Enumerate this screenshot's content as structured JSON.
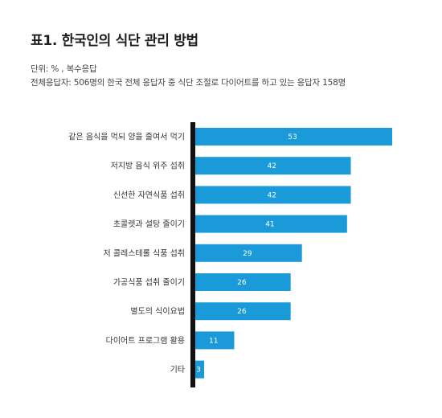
{
  "header": {
    "title": "표1. 한국인의 식단 관리 방법",
    "unit_note": "단위: % , 복수응답",
    "base_note": "전체응답자: 506명의 한국 전체 응답자 중 식단 조절로 다이어트를 하고 있는 응답자 158명"
  },
  "colors": {
    "bar": "#1a9ad9",
    "axis": "#111111",
    "value_text": "#ffffff",
    "label_text": "#333333"
  },
  "chart_data": {
    "type": "bar",
    "orientation": "horizontal",
    "title": "표1. 한국인의 식단 관리 방법",
    "xlabel": "",
    "ylabel": "",
    "xlim": [
      0,
      53
    ],
    "grid": false,
    "legend": "none",
    "categories": [
      "같은 음식을 먹되 양을 줄여서 먹기",
      "저지방 음식 위주 섭취",
      "신선한 자연식품 섭취",
      "초콜렛과 설탕 줄이기",
      "저 콜레스테롤 식품 섭취",
      "가공식품 섭취 줄이기",
      "별도의 식이요법",
      "다이어트 프로그램 활용",
      "기타"
    ],
    "values": [
      53,
      42,
      42,
      41,
      29,
      26,
      26,
      11,
      3
    ]
  }
}
